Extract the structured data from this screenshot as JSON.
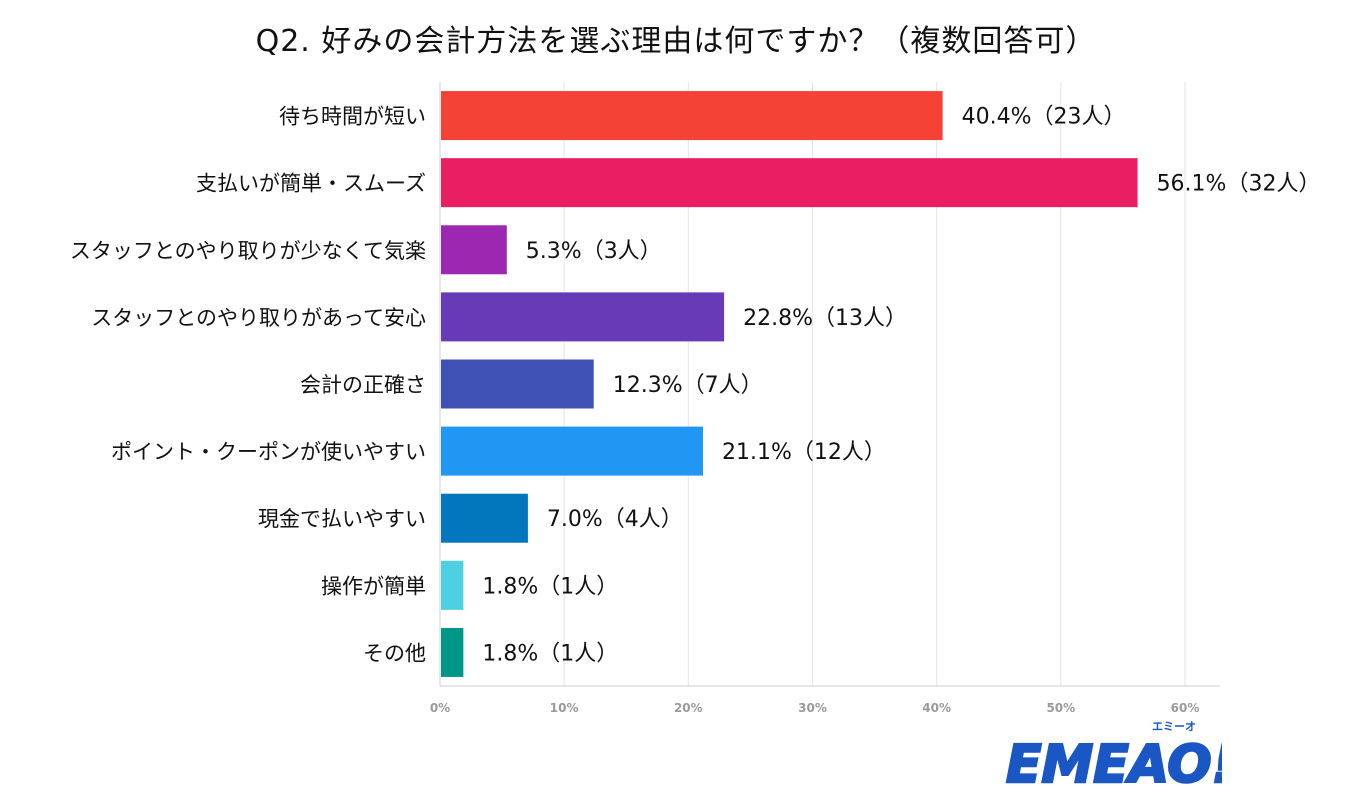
{
  "title": "Q2. 好みの会計方法を選ぶ理由は何ですか？（複数回答可）",
  "chart_data": {
    "type": "bar",
    "orientation": "horizontal",
    "title": "Q2. 好みの会計方法を選ぶ理由は何ですか？（複数回答可）",
    "xlabel": "",
    "ylabel": "",
    "xlim": [
      0,
      60
    ],
    "x_ticks": [
      "0%",
      "10%",
      "20%",
      "30%",
      "40%",
      "50%",
      "60%"
    ],
    "grid": true,
    "legend": "none",
    "categories": [
      "待ち時間が短い",
      "支払いが簡単・スムーズ",
      "スタッフとのやり取りが少なくて気楽",
      "スタッフとのやり取りがあって安心",
      "会計の正確さ",
      "ポイント・クーポンが使いやすい",
      "現金で払いやすい",
      "操作が簡単",
      "その他"
    ],
    "values": [
      40.4,
      56.1,
      5.3,
      22.8,
      12.3,
      21.1,
      7.0,
      1.8,
      1.8
    ],
    "data_labels": [
      "40.4%（23人）",
      "56.1%（32人）",
      "5.3%（3人）",
      "22.8%（13人）",
      "12.3%（7人）",
      "21.1%（12人）",
      "7.0%（4人）",
      "1.8%（1人）",
      "1.8%（1人）"
    ],
    "colors": [
      "#f44336",
      "#e91e63",
      "#9c27b0",
      "#673ab7",
      "#3f51b5",
      "#2196f3",
      "#0277bd",
      "#4dd0e1",
      "#009688"
    ]
  },
  "logo": {
    "text": "EMEAO!",
    "ruby": "エミーオ",
    "color": "#1a56c4",
    "accent": "#f5b800"
  }
}
